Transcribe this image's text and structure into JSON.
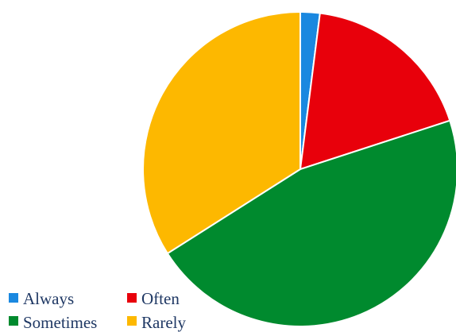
{
  "chart_data": {
    "type": "pie",
    "title": "",
    "start_angle_deg": 0,
    "direction": "clockwise",
    "slices": [
      {
        "label": "Always",
        "value": 2,
        "color": "#1a88e0"
      },
      {
        "label": "Often",
        "value": 18,
        "color": "#e8000b"
      },
      {
        "label": "Sometimes",
        "value": 46,
        "color": "#008a2e"
      },
      {
        "label": "Rarely",
        "value": 34,
        "color": "#fdb800"
      }
    ],
    "legend_position": "bottom-left"
  }
}
